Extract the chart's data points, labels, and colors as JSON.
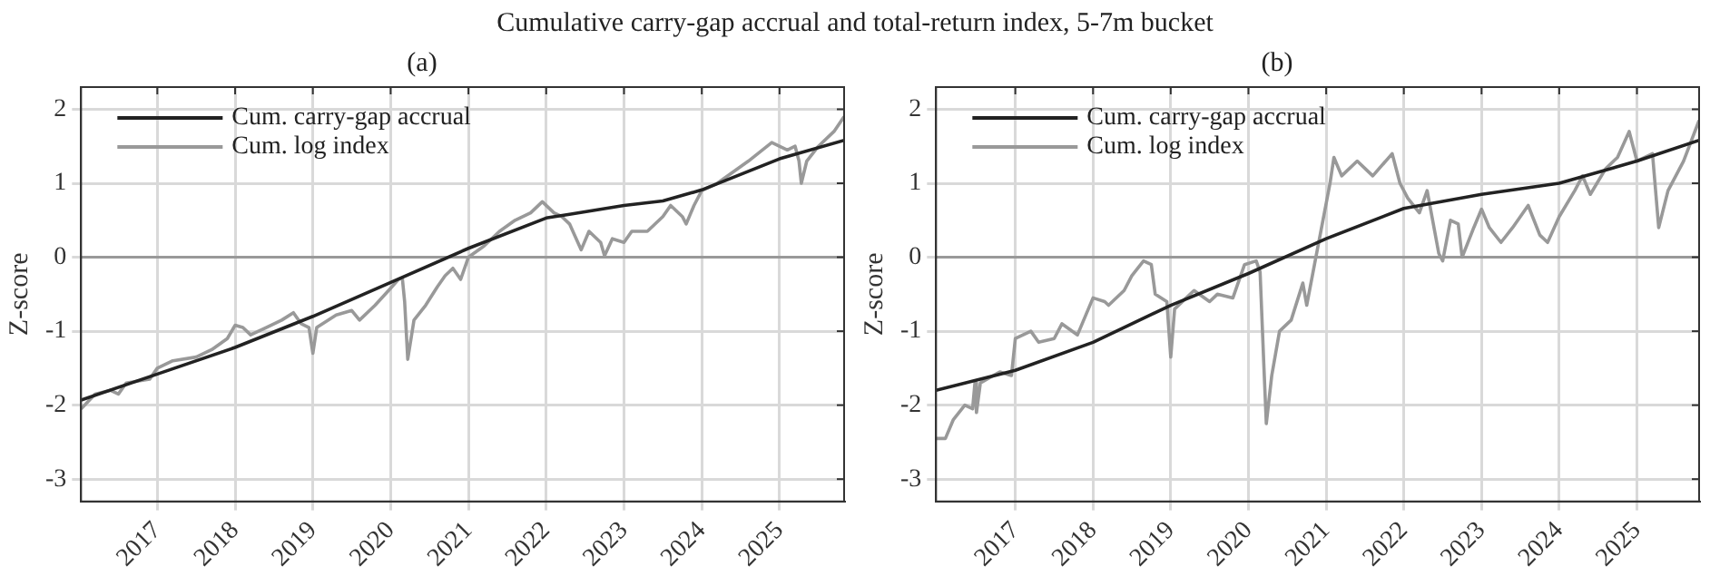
{
  "chart_data": [
    {
      "type": "line",
      "title": "(a)",
      "annotations": [
        "Cumulative carry-gap accrual and total-return index, 5-7m bucket"
      ],
      "ylabel": "Z-score",
      "xlim": [
        2016.02,
        2025.83
      ],
      "xticks": [
        2017,
        2018,
        2019,
        2020,
        2021,
        2022,
        2023,
        2024,
        2025
      ],
      "ylim": [
        -3.3,
        2.3
      ],
      "yticks": [
        -3,
        -2,
        -1,
        0,
        1,
        2
      ],
      "grid": true,
      "legend": "top left",
      "ref_lines": [
        {
          "axis": "y",
          "value": 0,
          "color": "#999999"
        }
      ],
      "series": [
        {
          "name": "Cum. carry-gap accrual",
          "color": "#222222",
          "x": [
            2016.02,
            2017,
            2018,
            2019,
            2020,
            2021,
            2022,
            2022.3,
            2023,
            2023.5,
            2024,
            2025,
            2025.83
          ],
          "values": [
            -1.93,
            -1.58,
            -1.22,
            -0.8,
            -0.34,
            0.12,
            0.53,
            0.58,
            0.7,
            0.76,
            0.91,
            1.33,
            1.58
          ]
        },
        {
          "name": "Cum. log index",
          "color": "#999999",
          "x": [
            2016.02,
            2016.2,
            2016.4,
            2016.5,
            2016.6,
            2016.9,
            2017.0,
            2017.2,
            2017.5,
            2017.7,
            2017.9,
            2018.0,
            2018.1,
            2018.2,
            2018.4,
            2018.6,
            2018.75,
            2018.85,
            2018.95,
            2019.0,
            2019.05,
            2019.3,
            2019.5,
            2019.6,
            2019.8,
            2020.0,
            2020.1,
            2020.15,
            2020.18,
            2020.22,
            2020.3,
            2020.45,
            2020.6,
            2020.7,
            2020.8,
            2020.9,
            2021.0,
            2021.2,
            2021.4,
            2021.6,
            2021.8,
            2021.95,
            2022.1,
            2022.2,
            2022.3,
            2022.45,
            2022.55,
            2022.7,
            2022.75,
            2022.85,
            2023.0,
            2023.1,
            2023.3,
            2023.5,
            2023.6,
            2023.75,
            2023.8,
            2023.9,
            2024.0,
            2024.2,
            2024.4,
            2024.6,
            2024.9,
            2025.1,
            2025.2,
            2025.25,
            2025.28,
            2025.35,
            2025.5,
            2025.7,
            2025.83
          ],
          "values": [
            -2.05,
            -1.85,
            -1.8,
            -1.85,
            -1.7,
            -1.65,
            -1.5,
            -1.4,
            -1.35,
            -1.25,
            -1.1,
            -0.92,
            -0.95,
            -1.05,
            -0.95,
            -0.85,
            -0.75,
            -0.9,
            -0.95,
            -1.3,
            -0.95,
            -0.78,
            -0.72,
            -0.85,
            -0.65,
            -0.42,
            -0.3,
            -0.28,
            -0.6,
            -1.38,
            -0.85,
            -0.65,
            -0.4,
            -0.25,
            -0.15,
            -0.3,
            0.0,
            0.15,
            0.35,
            0.5,
            0.6,
            0.75,
            0.6,
            0.55,
            0.45,
            0.1,
            0.35,
            0.2,
            0.02,
            0.25,
            0.2,
            0.35,
            0.35,
            0.55,
            0.7,
            0.55,
            0.45,
            0.7,
            0.9,
            1.0,
            1.15,
            1.3,
            1.55,
            1.45,
            1.5,
            1.3,
            1.0,
            1.3,
            1.5,
            1.7,
            1.9
          ]
        }
      ]
    },
    {
      "type": "line",
      "title": "(b)",
      "ylabel": "Z-score",
      "xlim": [
        2015.98,
        2025.8
      ],
      "xticks": [
        2017,
        2018,
        2019,
        2020,
        2021,
        2022,
        2023,
        2024,
        2025
      ],
      "ylim": [
        -3.3,
        2.3
      ],
      "yticks": [
        -3,
        -2,
        -1,
        0,
        1,
        2
      ],
      "grid": true,
      "legend": "top left",
      "ref_lines": [
        {
          "axis": "y",
          "value": 0,
          "color": "#999999"
        }
      ],
      "series": [
        {
          "name": "Cum. carry-gap accrual",
          "color": "#222222",
          "x": [
            2015.98,
            2017,
            2018,
            2019,
            2020,
            2021,
            2022,
            2023,
            2024,
            2025,
            2025.8
          ],
          "values": [
            -1.8,
            -1.53,
            -1.15,
            -0.65,
            -0.22,
            0.25,
            0.66,
            0.85,
            1.0,
            1.3,
            1.58
          ]
        },
        {
          "name": "Cum. log index",
          "color": "#999999",
          "x": [
            2015.98,
            2016.1,
            2016.2,
            2016.35,
            2016.45,
            2016.48,
            2016.5,
            2016.55,
            2016.8,
            2016.95,
            2017.0,
            2017.2,
            2017.3,
            2017.5,
            2017.6,
            2017.8,
            2018.0,
            2018.15,
            2018.2,
            2018.4,
            2018.5,
            2018.65,
            2018.75,
            2018.8,
            2018.95,
            2019.0,
            2019.05,
            2019.2,
            2019.3,
            2019.5,
            2019.6,
            2019.8,
            2019.95,
            2020.1,
            2020.15,
            2020.2,
            2020.23,
            2020.3,
            2020.4,
            2020.55,
            2020.7,
            2020.75,
            2020.85,
            2020.95,
            2021.05,
            2021.1,
            2021.2,
            2021.4,
            2021.6,
            2021.85,
            2021.95,
            2022.05,
            2022.2,
            2022.3,
            2022.45,
            2022.5,
            2022.6,
            2022.7,
            2022.75,
            2022.9,
            2023.0,
            2023.1,
            2023.25,
            2023.4,
            2023.6,
            2023.75,
            2023.85,
            2024.0,
            2024.2,
            2024.3,
            2024.4,
            2024.6,
            2024.75,
            2024.9,
            2025.0,
            2025.2,
            2025.28,
            2025.4,
            2025.6,
            2025.8
          ],
          "values": [
            -2.45,
            -2.45,
            -2.2,
            -2.0,
            -2.05,
            -1.7,
            -2.1,
            -1.7,
            -1.55,
            -1.6,
            -1.1,
            -1.0,
            -1.15,
            -1.1,
            -0.9,
            -1.05,
            -0.55,
            -0.6,
            -0.65,
            -0.45,
            -0.25,
            -0.05,
            -0.1,
            -0.5,
            -0.6,
            -1.35,
            -0.7,
            -0.55,
            -0.45,
            -0.6,
            -0.5,
            -0.55,
            -0.1,
            -0.05,
            -0.2,
            -1.5,
            -2.25,
            -1.6,
            -1.0,
            -0.85,
            -0.35,
            -0.65,
            -0.1,
            0.45,
            1.0,
            1.35,
            1.1,
            1.3,
            1.1,
            1.4,
            1.0,
            0.8,
            0.6,
            0.9,
            0.05,
            -0.05,
            0.5,
            0.45,
            0.0,
            0.4,
            0.65,
            0.4,
            0.2,
            0.4,
            0.7,
            0.3,
            0.2,
            0.55,
            0.9,
            1.1,
            0.85,
            1.2,
            1.35,
            1.7,
            1.3,
            1.4,
            0.4,
            0.9,
            1.3,
            1.85
          ]
        }
      ]
    }
  ]
}
